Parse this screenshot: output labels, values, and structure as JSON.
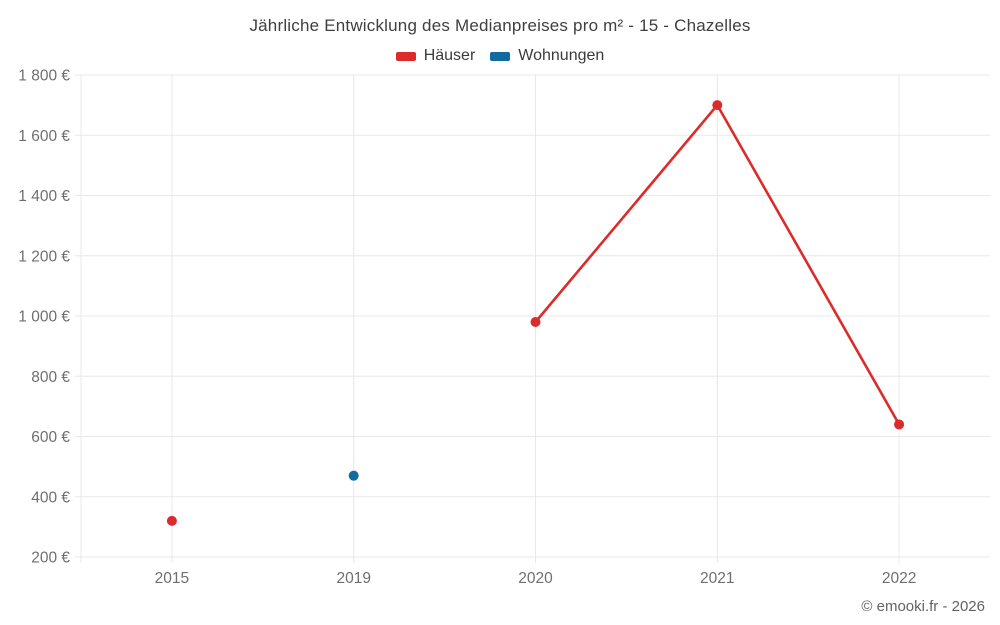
{
  "chart_data": {
    "type": "line",
    "title": "Jährliche Entwicklung des Medianpreises pro m² - 15 - Chazelles",
    "categories": [
      "2015",
      "2019",
      "2020",
      "2021",
      "2022"
    ],
    "series": [
      {
        "name": "Häuser",
        "color": "#dc2b2b",
        "values": [
          320,
          null,
          980,
          1700,
          640
        ]
      },
      {
        "name": "Wohnungen",
        "color": "#126a9e",
        "values": [
          null,
          470,
          null,
          null,
          null
        ]
      }
    ],
    "ylim": [
      200,
      1800
    ],
    "y_tick_step": 200,
    "y_tick_labels": [
      "200 €",
      "400 €",
      "600 €",
      "800 €",
      "1 000 €",
      "1 200 €",
      "1 400 €",
      "1 600 €",
      "1 800 €"
    ],
    "x_tick_labels": [
      "2015",
      "2019",
      "2020",
      "2021",
      "2022"
    ],
    "grid": true,
    "grid_color": "#e8e8e8",
    "axis_text_color": "#6f6f6f",
    "legend_position": "top",
    "footer": "© emooki.fr - 2026"
  }
}
